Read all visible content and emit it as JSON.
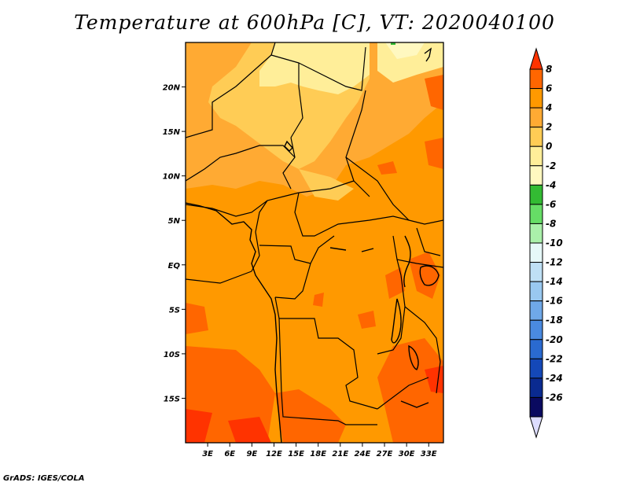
{
  "title": "Temperature at 600hPa [C], VT: 2020040100",
  "credit": "GrADS: IGES/COLA",
  "map": {
    "lon_range": [
      0,
      35
    ],
    "lat_range": [
      -20,
      25
    ],
    "lat_ticks": [
      {
        "lat": 20,
        "label": "20N"
      },
      {
        "lat": 15,
        "label": "15N"
      },
      {
        "lat": 10,
        "label": "10N"
      },
      {
        "lat": 5,
        "label": "5N"
      },
      {
        "lat": 0,
        "label": "EQ"
      },
      {
        "lat": -5,
        "label": "5S"
      },
      {
        "lat": -10,
        "label": "10S"
      },
      {
        "lat": -15,
        "label": "15S"
      }
    ],
    "lon_ticks": [
      {
        "lon": 3,
        "label": "3E"
      },
      {
        "lon": 6,
        "label": "6E"
      },
      {
        "lon": 9,
        "label": "9E"
      },
      {
        "lon": 12,
        "label": "12E"
      },
      {
        "lon": 15,
        "label": "15E"
      },
      {
        "lon": 18,
        "label": "18E"
      },
      {
        "lon": 21,
        "label": "21E"
      },
      {
        "lon": 24,
        "label": "24E"
      },
      {
        "lon": 27,
        "label": "27E"
      },
      {
        "lon": 30,
        "label": "30E"
      },
      {
        "lon": 33,
        "label": "33E"
      }
    ]
  },
  "colorbar": {
    "labels": [
      "8",
      "6",
      "4",
      "2",
      "0",
      "-2",
      "-4",
      "-6",
      "-8",
      "-10",
      "-12",
      "-14",
      "-16",
      "-18",
      "-20",
      "-22",
      "-24",
      "-26"
    ],
    "colors": [
      "#ff3300",
      "#ff6600",
      "#ff9900",
      "#ffaa33",
      "#ffcc55",
      "#ffee99",
      "#fff8c0",
      "#33bb33",
      "#66dd66",
      "#aaf0aa",
      "#e6f8f8",
      "#bfe0f5",
      "#99c8f0",
      "#6fa8e8",
      "#4a8ae0",
      "#2a6ad0",
      "#1448b8",
      "#0a2a90",
      "#0a0a60",
      "#ddddff"
    ]
  },
  "scalar_field": {
    "description": "600 hPa temperature (degC) over central Africa, 0E-35E, 20S-25N",
    "range_observed": [
      -4,
      8
    ]
  }
}
